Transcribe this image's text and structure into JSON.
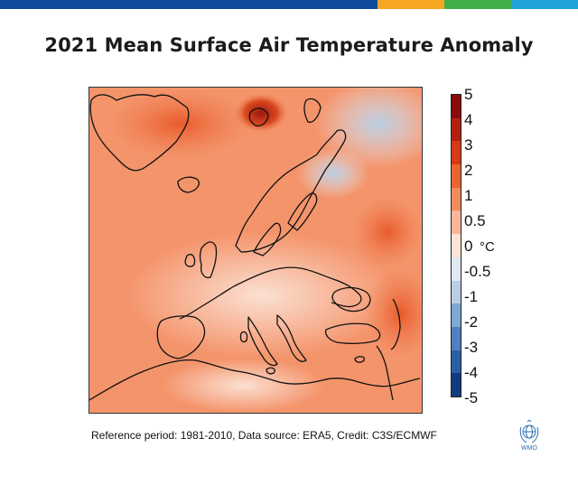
{
  "brand_colors": [
    "#0f4c9c",
    "#f5a623",
    "#3fae49",
    "#1fa3d9"
  ],
  "title": "2021 Mean Surface Air Temperature Anomaly",
  "colorbar": {
    "ticks": [
      "5",
      "4",
      "3",
      "2",
      "1",
      "0.5",
      "0",
      "-0.5",
      "-1",
      "-2",
      "-3",
      "-4",
      "-5"
    ],
    "unit": "°C",
    "colors": [
      "#8a0b0b",
      "#b3200f",
      "#d73a16",
      "#e9652f",
      "#f38b5a",
      "#f8b598",
      "#fbe3d8",
      "#dfe8f1",
      "#b9cde4",
      "#7fa8d2",
      "#4e81bd",
      "#2b5fa3",
      "#123a80"
    ]
  },
  "map": {
    "description_icon": "europe-temperature-map",
    "dominant_color": "#f59a72"
  },
  "footer": {
    "reference": "Reference period: 1981-2010, Data source: ERA5, Credit: C3S/ECMWF"
  },
  "logo": {
    "icon": "wmo-logo-icon",
    "text": "WMO"
  }
}
